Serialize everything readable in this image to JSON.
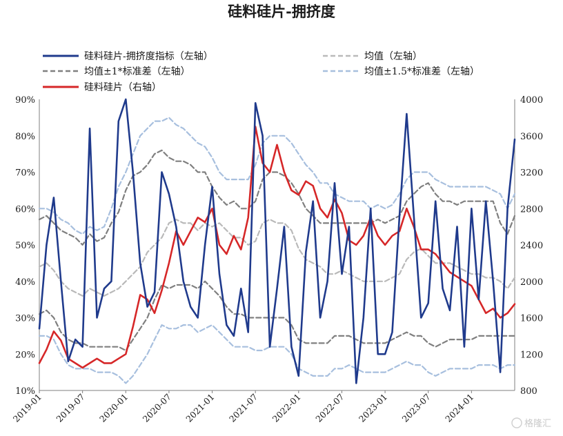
{
  "chart_data": {
    "type": "line",
    "title": "硅料硅片-拥挤度",
    "x": [
      "2019-01",
      "2019-02",
      "2019-03",
      "2019-04",
      "2019-05",
      "2019-06",
      "2019-07",
      "2019-08",
      "2019-09",
      "2019-10",
      "2019-11",
      "2019-12",
      "2020-01",
      "2020-02",
      "2020-03",
      "2020-04",
      "2020-05",
      "2020-06",
      "2020-07",
      "2020-08",
      "2020-09",
      "2020-10",
      "2020-11",
      "2020-12",
      "2021-01",
      "2021-02",
      "2021-03",
      "2021-04",
      "2021-05",
      "2021-06",
      "2021-07",
      "2021-08",
      "2021-09",
      "2021-10",
      "2021-11",
      "2021-12",
      "2022-01",
      "2022-02",
      "2022-03",
      "2022-04",
      "2022-05",
      "2022-06",
      "2022-07",
      "2022-08",
      "2022-09",
      "2022-10",
      "2022-11",
      "2022-12",
      "2023-01",
      "2023-02",
      "2023-03",
      "2023-04",
      "2023-05",
      "2023-06",
      "2023-07",
      "2023-08",
      "2023-09",
      "2023-10",
      "2023-11",
      "2023-12",
      "2024-01",
      "2024-02",
      "2024-03",
      "2024-04",
      "2024-05",
      "2024-06",
      "2024-07"
    ],
    "x_tick_labels": [
      "2019-01",
      "2019-07",
      "2020-01",
      "2020-07",
      "2021-01",
      "2021-07",
      "2022-01",
      "2022-07",
      "2023-01",
      "2023-07",
      "2024-01"
    ],
    "left_axis": {
      "min": 10,
      "max": 90,
      "step": 10,
      "unit": "%",
      "ticks": [
        "10%",
        "20%",
        "30%",
        "40%",
        "50%",
        "60%",
        "70%",
        "80%",
        "90%"
      ]
    },
    "right_axis": {
      "min": 800,
      "max": 4000,
      "step": 400,
      "ticks": [
        "800",
        "1200",
        "1600",
        "2000",
        "2400",
        "2800",
        "3200",
        "3600",
        "4000"
      ]
    },
    "series": [
      {
        "name": "硅料硅片-拥挤度指标（左轴）",
        "axis": "left",
        "color": "#1f3a8c",
        "style": "solid",
        "values": [
          27,
          50,
          63,
          40,
          18,
          24,
          22,
          82,
          30,
          38,
          40,
          84,
          90,
          70,
          45,
          33,
          37,
          70,
          64,
          55,
          40,
          33,
          30,
          50,
          66,
          42,
          28,
          25,
          38,
          26,
          89,
          80,
          22,
          38,
          55,
          22,
          14,
          48,
          62,
          30,
          40,
          67,
          42,
          55,
          12,
          30,
          60,
          20,
          20,
          26,
          58,
          86,
          58,
          30,
          34,
          62,
          38,
          32,
          55,
          22,
          60,
          35,
          62,
          40,
          15,
          60,
          79
        ]
      },
      {
        "name": "均值（左轴）",
        "axis": "left",
        "color": "#b9b9b9",
        "style": "dash",
        "values": [
          44,
          45,
          43,
          40,
          38,
          37,
          36,
          38,
          37,
          36,
          37,
          38,
          40,
          42,
          44,
          48,
          50,
          52,
          56,
          57,
          56,
          56,
          54,
          56,
          55,
          56,
          54,
          52,
          52,
          50,
          51,
          56,
          57,
          56,
          56,
          54,
          49,
          46,
          45,
          44,
          42,
          42,
          43,
          42,
          41,
          40,
          40,
          40,
          40,
          41,
          42,
          46,
          48,
          49,
          47,
          45,
          45,
          45,
          44,
          43,
          42,
          42,
          41,
          41,
          40,
          38,
          41
        ]
      },
      {
        "name": "均值±1*标准差（左轴）",
        "axis": "left",
        "color": "#7f7f7f",
        "style": "dash",
        "values": [
          57,
          58,
          56,
          54,
          53,
          52,
          50,
          53,
          51,
          52,
          56,
          59,
          65,
          69,
          70,
          72,
          75,
          76,
          74,
          73,
          73,
          72,
          70,
          70,
          66,
          63,
          61,
          62,
          60,
          60,
          62,
          68,
          70,
          70,
          69,
          67,
          64,
          60,
          58,
          56,
          56,
          56,
          56,
          56,
          56,
          56,
          56,
          57,
          56,
          57,
          58,
          62,
          64,
          66,
          67,
          64,
          62,
          62,
          61,
          62,
          62,
          62,
          62,
          62,
          56,
          53,
          58
        ]
      },
      {
        "name": "均值±1*标准差（左轴）",
        "axis": "left",
        "color": "#7f7f7f",
        "style": "dash",
        "values": [
          31,
          32,
          30,
          26,
          24,
          23,
          23,
          22,
          22,
          22,
          22,
          22,
          21,
          24,
          27,
          30,
          35,
          39,
          38,
          39,
          39,
          39,
          38,
          40,
          38,
          36,
          33,
          31,
          31,
          30,
          30,
          30,
          30,
          30,
          30,
          28,
          24,
          23,
          23,
          23,
          23,
          25,
          25,
          25,
          24,
          23,
          23,
          23,
          23,
          24,
          25,
          26,
          25,
          25,
          23,
          22,
          23,
          24,
          24,
          24,
          24,
          25,
          25,
          25,
          25,
          25,
          25
        ]
      },
      {
        "name": "均值±1.5*标准差（左轴）",
        "axis": "left",
        "color": "#a7bfde",
        "style": "dash",
        "values": [
          60,
          60,
          59,
          57,
          56,
          54,
          53,
          55,
          54,
          55,
          60,
          66,
          70,
          75,
          80,
          82,
          84,
          84,
          85,
          83,
          82,
          80,
          78,
          77,
          74,
          70,
          68,
          68,
          68,
          68,
          72,
          78,
          80,
          80,
          80,
          78,
          75,
          72,
          70,
          67,
          67,
          64,
          63,
          62,
          62,
          62,
          60,
          61,
          60,
          61,
          64,
          68,
          70,
          70,
          70,
          68,
          67,
          66,
          66,
          66,
          66,
          66,
          66,
          65,
          64,
          60,
          64
        ]
      },
      {
        "name": "均值±1.5*标准差（左轴）",
        "axis": "left",
        "color": "#a7bfde",
        "style": "dash",
        "values": [
          25,
          25,
          24,
          20,
          17,
          16,
          16,
          16,
          15,
          15,
          15,
          14,
          12,
          14,
          17,
          20,
          24,
          28,
          27,
          27,
          28,
          28,
          26,
          27,
          28,
          26,
          24,
          22,
          22,
          22,
          21,
          21,
          22,
          22,
          22,
          20,
          16,
          15,
          14,
          14,
          14,
          16,
          16,
          17,
          16,
          15,
          15,
          15,
          15,
          16,
          17,
          18,
          17,
          17,
          15,
          14,
          15,
          16,
          16,
          16,
          16,
          17,
          17,
          17,
          16,
          17,
          17
        ]
      },
      {
        "name": "硅料硅片（右轴）",
        "axis": "right",
        "color": "#d62728",
        "style": "solid",
        "values": [
          1100,
          1250,
          1450,
          1350,
          1150,
          1100,
          1050,
          1100,
          1150,
          1100,
          1100,
          1150,
          1200,
          1500,
          1850,
          1800,
          1650,
          1900,
          2200,
          2550,
          2400,
          2550,
          2700,
          2650,
          2800,
          2400,
          2300,
          2500,
          2350,
          2700,
          3700,
          3300,
          3200,
          3500,
          3200,
          3000,
          2950,
          3100,
          3050,
          2800,
          2700,
          2900,
          2750,
          2450,
          2400,
          2500,
          2700,
          2500,
          2400,
          2500,
          2550,
          2800,
          2600,
          2350,
          2350,
          2300,
          2200,
          2100,
          2050,
          2000,
          1950,
          1800,
          1650,
          1700,
          1600,
          1650,
          1750
        ]
      }
    ],
    "legend": [
      {
        "label": "硅料硅片-拥挤度指标（左轴）",
        "color": "#1f3a8c",
        "style": "solid"
      },
      {
        "label": "均值（左轴）",
        "color": "#b9b9b9",
        "style": "dash"
      },
      {
        "label": "均值±1*标准差（左轴）",
        "color": "#7f7f7f",
        "style": "dash"
      },
      {
        "label": "均值±1.5*标准差（左轴）",
        "color": "#a7bfde",
        "style": "dash"
      },
      {
        "label": "硅料硅片（右轴）",
        "color": "#d62728",
        "style": "solid"
      }
    ],
    "legend_placement": "top",
    "grid": false
  },
  "watermark": "格隆汇"
}
